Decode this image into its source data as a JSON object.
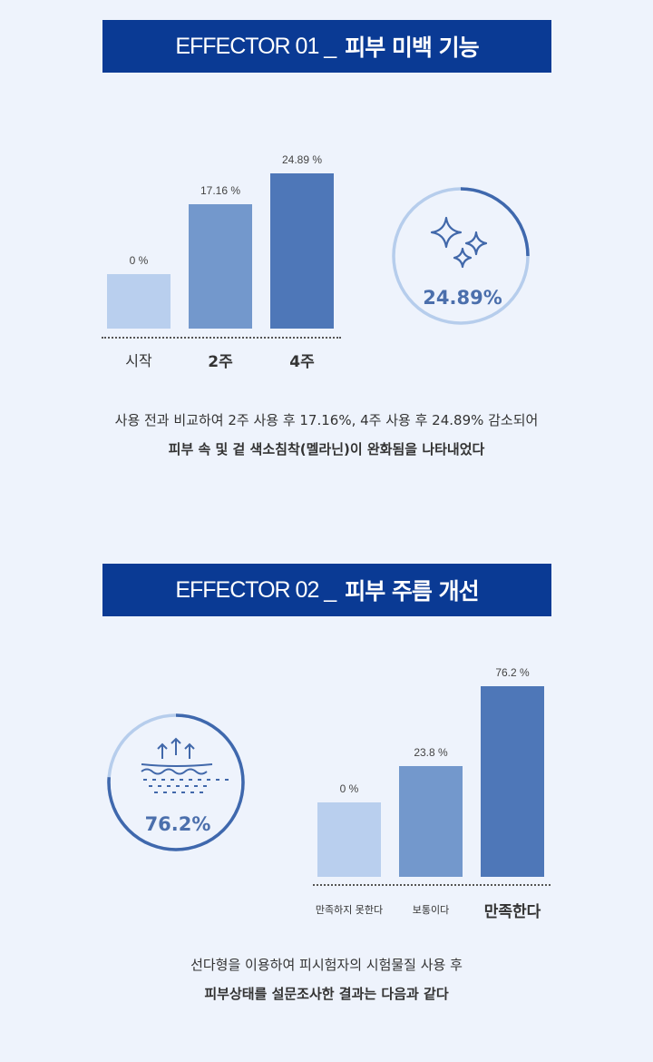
{
  "section1": {
    "title_en": "EFFECTOR 01 _",
    "title_ko": "피부 미백 기능",
    "circle_value": "24.89%",
    "circle_fraction": 0.25,
    "desc_line1": "사용 전과 비교하여 2주 사용 후 17.16%, 4주 사용 후 24.89% 감소되어",
    "desc_line2": "피부 속 및 겉 색소침착(멜라닌)이 완화됨을 나타내었다"
  },
  "section2": {
    "title_en": "EFFECTOR 02 _",
    "title_ko": "피부 주름 개선",
    "circle_value": "76.2%",
    "circle_fraction": 0.762,
    "desc_line1": "선다형을 이용하여 피시험자의 시험물질 사용 후",
    "desc_line2": "피부상태를 설문조사한 결과는 다음과 같다"
  },
  "colors": [
    "#b9cfee",
    "#7398cc",
    "#4e77b8"
  ],
  "chart_data": [
    {
      "type": "bar",
      "categories": [
        "시작",
        "2주",
        "4주"
      ],
      "values": [
        0,
        17.16,
        24.89
      ],
      "labels": [
        "0 %",
        "17.16 %",
        "24.89 %"
      ],
      "unit": "%"
    },
    {
      "type": "bar",
      "categories": [
        "만족하지 못한다",
        "보통이다",
        "만족한다"
      ],
      "values": [
        0,
        23.8,
        76.2
      ],
      "labels": [
        "0 %",
        "23.8 %",
        "76.2 %"
      ],
      "unit": "%"
    }
  ]
}
